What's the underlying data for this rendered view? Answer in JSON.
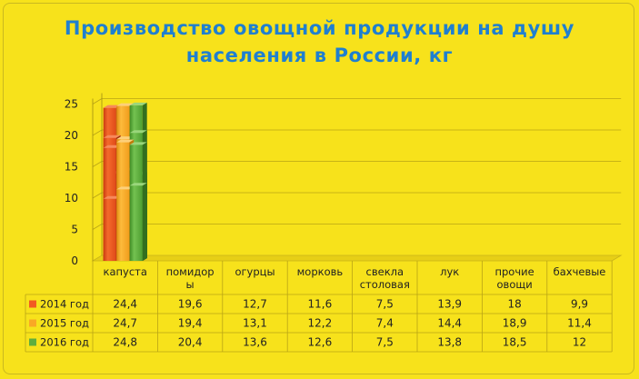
{
  "chart_data": {
    "type": "bar",
    "title": "Производство овощной продукции на душу\nнаселения в России, кг",
    "categories": [
      "капуста",
      "помидоры",
      "огурцы",
      "морковь",
      "свекла столовая",
      "лук",
      "прочие овощи",
      "бахчевые"
    ],
    "category_labels": [
      "капуста",
      "помидор\nы",
      "огурцы",
      "морковь",
      "свекла\nстоловая",
      "лук",
      "прочие\nовощи",
      "бахчевые"
    ],
    "series": [
      {
        "name": "2014 год",
        "values": [
          24.4,
          19.6,
          12.7,
          11.6,
          7.5,
          13.9,
          18,
          9.9
        ],
        "labels": [
          "24,4",
          "19,6",
          "12,7",
          "11,6",
          "7,5",
          "13,9",
          "18",
          "9,9"
        ],
        "color": "#f25a22"
      },
      {
        "name": "2015 год",
        "values": [
          24.7,
          19.4,
          13.1,
          12.2,
          7.4,
          14.4,
          18.9,
          11.4
        ],
        "labels": [
          "24,7",
          "19,4",
          "13,1",
          "12,2",
          "7,4",
          "14,4",
          "18,9",
          "11,4"
        ],
        "color": "#f9a825"
      },
      {
        "name": "2016 год",
        "values": [
          24.8,
          20.4,
          13.6,
          12.6,
          7.5,
          13.8,
          18.5,
          12
        ],
        "labels": [
          "24,8",
          "20,4",
          "13,6",
          "12,6",
          "7,5",
          "13,8",
          "18,5",
          "12"
        ],
        "color": "#5fae3e"
      }
    ],
    "ylim": [
      0,
      25
    ],
    "yticks": [
      0,
      5,
      10,
      15,
      20,
      25
    ],
    "grid": true,
    "legend": "data-table"
  }
}
